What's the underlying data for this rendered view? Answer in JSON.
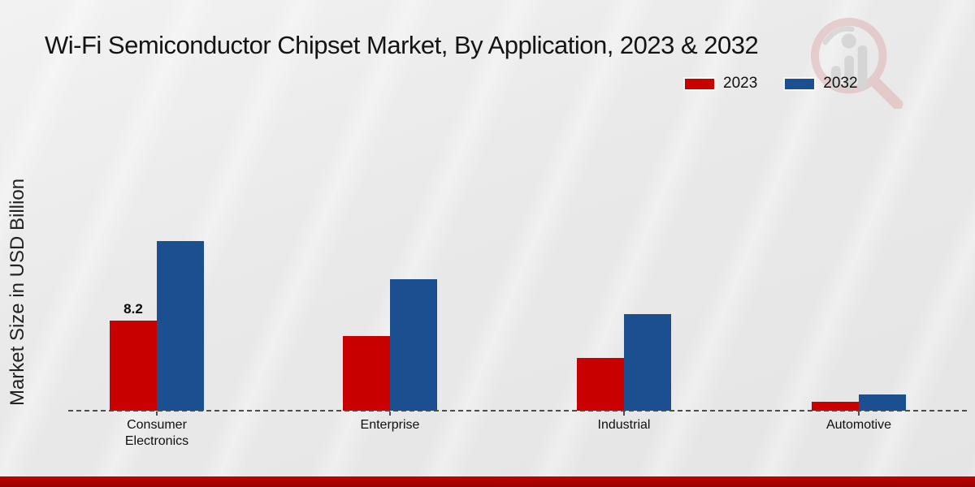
{
  "title": "Wi-Fi Semiconductor Chipset Market, By Application, 2023 & 2032",
  "y_axis_label": "Market Size in USD Billion",
  "legend": {
    "items": [
      {
        "label": "2023",
        "color": "#c80000"
      },
      {
        "label": "2032",
        "color": "#1b4f8f"
      }
    ]
  },
  "watermark_icon": "magnifier-bar-chart-logo",
  "colors": {
    "series_2023": "#c80000",
    "series_2032": "#1b4f8f",
    "footer_accent": "#b80000",
    "background": "#e9e9e9",
    "baseline": "#4d4d4d"
  },
  "chart_data": {
    "type": "bar",
    "title": "Wi-Fi Semiconductor Chipset Market, By Application, 2023 & 2032",
    "categories": [
      "Consumer Electronics",
      "Enterprise",
      "Industrial",
      "Automotive"
    ],
    "series": [
      {
        "name": "2023",
        "color": "#c80000",
        "values": [
          8.2,
          6.8,
          4.8,
          0.8
        ],
        "labels": [
          "8.2",
          "",
          "",
          ""
        ]
      },
      {
        "name": "2032",
        "color": "#1b4f8f",
        "values": [
          15.4,
          12.0,
          8.8,
          1.5
        ],
        "labels": [
          "",
          "",
          "",
          ""
        ]
      }
    ],
    "xlabel": "",
    "ylabel": "Market Size in USD Billion",
    "ylim": [
      0,
      16
    ],
    "grid": false,
    "axis_style": "dashed-baseline-only",
    "legend_position": "top-right"
  }
}
